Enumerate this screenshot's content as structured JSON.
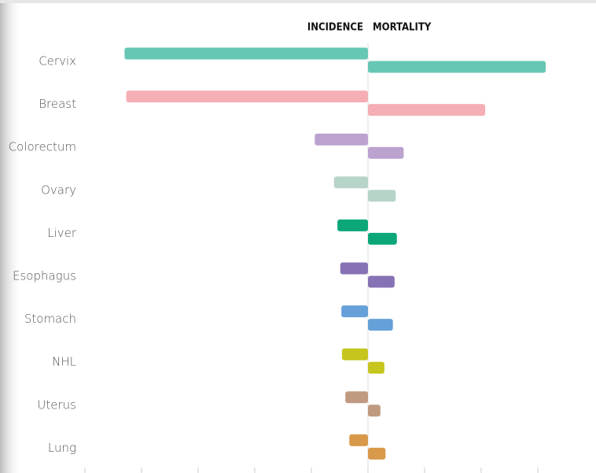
{
  "chart_data": {
    "type": "butterfly-bar",
    "categories": [
      "Cervix",
      "Breast",
      "Colorectum",
      "Ovary",
      "Liver",
      "Esophagus",
      "Stomach",
      "NHL",
      "Uterus",
      "Lung"
    ],
    "colors": [
      "#66c8b4",
      "#f4aeb4",
      "#bba2cf",
      "#b7d4c8",
      "#0ba779",
      "#8672b5",
      "#65a0d8",
      "#c5c51e",
      "#bf9a80",
      "#d9994a"
    ],
    "series": [
      {
        "name": "INCIDENCE",
        "values": [
          4.3,
          4.27,
          0.94,
          0.6,
          0.54,
          0.49,
          0.47,
          0.46,
          0.4,
          0.33
        ]
      },
      {
        "name": "MORTALITY",
        "values": [
          3.14,
          2.07,
          0.63,
          0.49,
          0.51,
          0.47,
          0.44,
          0.29,
          0.22,
          0.31
        ]
      }
    ],
    "xlim": [
      -5,
      4
    ],
    "xticks": [
      -5,
      -4,
      -3,
      -2,
      -1,
      0,
      1,
      2,
      3
    ]
  }
}
